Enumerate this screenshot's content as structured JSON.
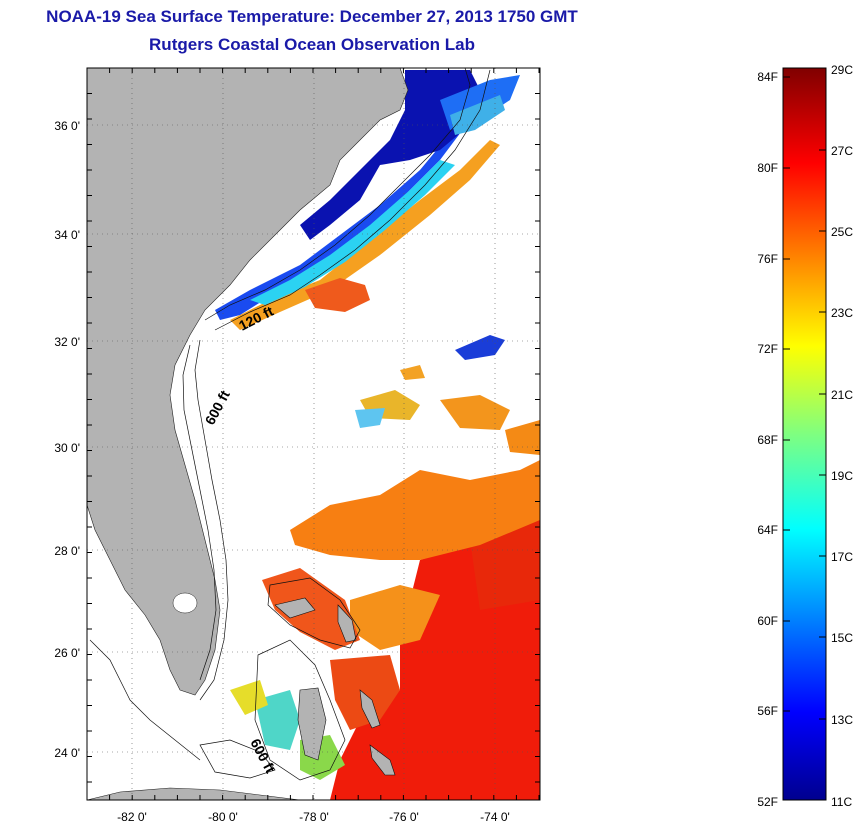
{
  "title": "NOAA-19 Sea Surface Temperature:  December 27, 2013 1750 GMT",
  "subtitle": "Rutgers Coastal Ocean Observation Lab",
  "map": {
    "lon_range": [
      -83,
      -73
    ],
    "lat_range": [
      23,
      37
    ],
    "lat_ticks": [
      "36 0'",
      "34 0'",
      "32 0'",
      "30 0'",
      "28 0'",
      "26 0'",
      "24 0'"
    ],
    "lon_ticks": [
      "-82 0'",
      "-80 0'",
      "-78 0'",
      "-76 0'",
      "-74 0'"
    ],
    "contour_labels": [
      "120 ft",
      "600 ft",
      "600 ft"
    ],
    "colors": {
      "land": "#b3b3b3",
      "cloud": "#ffffff"
    }
  },
  "colorbar": {
    "fahrenheit_labels": [
      "84F",
      "80F",
      "76F",
      "72F",
      "68F",
      "64F",
      "60F",
      "56F",
      "52F"
    ],
    "celsius_labels": [
      "29C",
      "27C",
      "25C",
      "23C",
      "21C",
      "19C",
      "17C",
      "15C",
      "13C",
      "11C"
    ],
    "colormap": "jet",
    "range_c": [
      11,
      29
    ]
  }
}
